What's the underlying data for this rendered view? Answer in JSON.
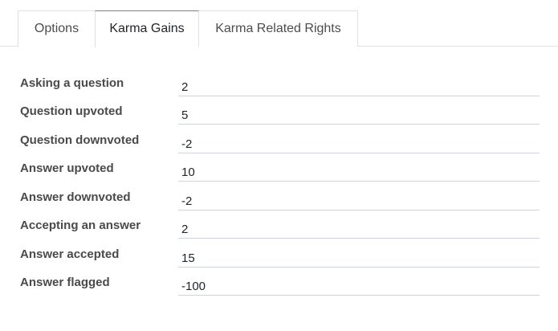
{
  "tabs": [
    {
      "label": "Options"
    },
    {
      "label": "Karma Gains",
      "active": true
    },
    {
      "label": "Karma Related Rights"
    }
  ],
  "fields": [
    {
      "label": "Asking a question",
      "value": "2"
    },
    {
      "label": "Question upvoted",
      "value": "5"
    },
    {
      "label": "Question downvoted",
      "value": "-2"
    },
    {
      "label": "Answer upvoted",
      "value": "10"
    },
    {
      "label": "Answer downvoted",
      "value": "-2"
    },
    {
      "label": "Accepting an answer",
      "value": "2"
    },
    {
      "label": "Answer accepted",
      "value": "15"
    },
    {
      "label": "Answer flagged",
      "value": "-100"
    }
  ]
}
